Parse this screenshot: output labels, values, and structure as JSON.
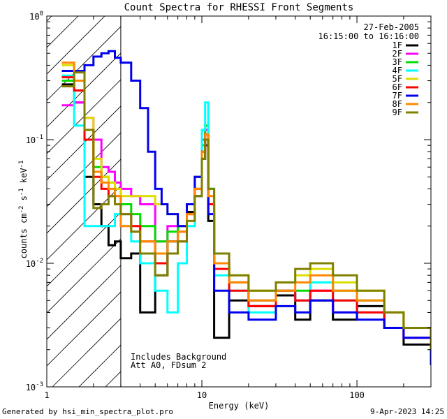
{
  "chart_data": {
    "type": "line",
    "title": "Count Spectra for RHESSI Front Segments",
    "xlabel": "Energy (keV)",
    "ylabel": "counts cm^-2 s^-1 keV^-1",
    "x_scale": "log",
    "y_scale": "log",
    "xlim": [
      1.0,
      300.0
    ],
    "ylim": [
      0.001,
      1.0
    ],
    "x_ticks": [
      {
        "value": 1,
        "label": "1"
      },
      {
        "value": 10,
        "label": "10"
      },
      {
        "value": 100,
        "label": "100"
      }
    ],
    "y_ticks": [
      {
        "value": 0.001,
        "base": "10",
        "exp": "-3"
      },
      {
        "value": 0.01,
        "base": "10",
        "exp": "-2"
      },
      {
        "value": 0.1,
        "base": "10",
        "exp": "-1"
      },
      {
        "value": 1,
        "base": "10",
        "exp": "0"
      }
    ],
    "date": "27-Feb-2005",
    "time_range": "16:15:00 to 16:16:00",
    "hatched_region_max_energy": 3.0,
    "annotations": [
      "Includes Background",
      "Att A0, FDsum 2"
    ],
    "series": [
      {
        "name": "1F",
        "color": "#000000",
        "x": [
          1.25,
          1.5,
          1.75,
          2.0,
          2.25,
          2.5,
          2.75,
          3.0,
          3.5,
          4.0,
          5.0,
          6.0,
          7.0,
          8.0,
          9.0,
          10.0,
          10.5,
          11.0,
          12.0,
          15.0,
          20.0,
          30.0,
          40.0,
          50.0,
          70.0,
          100.0,
          150.0,
          200.0,
          300.0
        ],
        "values": [
          0.28,
          0.2,
          0.05,
          0.03,
          0.02,
          0.014,
          0.015,
          0.011,
          0.012,
          0.004,
          0.008,
          0.015,
          0.02,
          0.026,
          0.035,
          0.07,
          0.09,
          0.022,
          0.0025,
          0.005,
          0.0045,
          0.0055,
          0.0035,
          0.005,
          0.0035,
          0.0045,
          0.003,
          0.0022,
          0.0015
        ]
      },
      {
        "name": "2F",
        "color": "#ff00ff",
        "x": [
          1.25,
          1.5,
          1.75,
          2.0,
          2.25,
          2.5,
          2.75,
          3.0,
          3.5,
          4.0,
          5.0,
          6.0,
          7.0,
          8.0,
          9.0,
          10.0,
          10.5,
          11.0,
          12.0,
          15.0,
          20.0,
          30.0,
          40.0,
          50.0,
          70.0,
          100.0,
          150.0,
          200.0,
          300.0
        ],
        "values": [
          0.19,
          0.2,
          0.15,
          0.1,
          0.06,
          0.055,
          0.045,
          0.04,
          0.035,
          0.03,
          0.015,
          0.02,
          0.018,
          0.03,
          0.05,
          0.1,
          0.12,
          0.03,
          0.012,
          0.007,
          0.005,
          0.006,
          0.005,
          0.006,
          0.004,
          0.004,
          0.003,
          0.0025,
          0.002
        ]
      },
      {
        "name": "3F",
        "color": "#00dd00",
        "x": [
          1.25,
          1.5,
          1.75,
          2.0,
          2.25,
          2.5,
          2.75,
          3.0,
          3.5,
          4.0,
          5.0,
          6.0,
          7.0,
          8.0,
          9.0,
          10.0,
          10.5,
          11.0,
          12.0,
          15.0,
          20.0,
          30.0,
          40.0,
          50.0,
          70.0,
          100.0,
          150.0,
          200.0,
          300.0
        ],
        "values": [
          0.3,
          0.25,
          0.12,
          0.06,
          0.05,
          0.045,
          0.04,
          0.03,
          0.025,
          0.02,
          0.015,
          0.018,
          0.02,
          0.03,
          0.05,
          0.09,
          0.13,
          0.04,
          0.01,
          0.007,
          0.005,
          0.006,
          0.006,
          0.007,
          0.006,
          0.005,
          0.004,
          0.003,
          0.002
        ]
      },
      {
        "name": "4F",
        "color": "#00ffff",
        "x": [
          1.25,
          1.5,
          1.75,
          2.0,
          2.25,
          2.5,
          2.75,
          3.0,
          3.5,
          4.0,
          5.0,
          6.0,
          7.0,
          8.0,
          9.0,
          10.0,
          10.5,
          11.0,
          12.0,
          15.0,
          20.0,
          30.0,
          40.0,
          50.0,
          70.0,
          100.0,
          150.0,
          200.0,
          300.0
        ],
        "values": [
          0.33,
          0.13,
          0.02,
          0.02,
          0.02,
          0.02,
          0.025,
          0.025,
          0.015,
          0.01,
          0.006,
          0.004,
          0.01,
          0.02,
          0.04,
          0.12,
          0.2,
          0.04,
          0.008,
          0.006,
          0.004,
          0.006,
          0.005,
          0.007,
          0.005,
          0.004,
          0.003,
          0.003,
          0.002
        ]
      },
      {
        "name": "5F",
        "color": "#dddd00",
        "x": [
          1.25,
          1.5,
          1.75,
          2.0,
          2.25,
          2.5,
          2.75,
          3.0,
          3.5,
          4.0,
          5.0,
          6.0,
          7.0,
          8.0,
          9.0,
          10.0,
          10.5,
          11.0,
          12.0,
          15.0,
          20.0,
          30.0,
          40.0,
          50.0,
          70.0,
          100.0,
          150.0,
          200.0,
          300.0
        ],
        "values": [
          0.4,
          0.3,
          0.15,
          0.07,
          0.05,
          0.045,
          0.04,
          0.035,
          0.035,
          0.035,
          0.03,
          0.025,
          0.02,
          0.025,
          0.04,
          0.08,
          0.1,
          0.03,
          0.01,
          0.008,
          0.006,
          0.007,
          0.008,
          0.009,
          0.007,
          0.006,
          0.004,
          0.003,
          0.002
        ]
      },
      {
        "name": "6F",
        "color": "#ff0000",
        "x": [
          1.25,
          1.5,
          1.75,
          2.0,
          2.25,
          2.5,
          2.75,
          3.0,
          3.5,
          4.0,
          5.0,
          6.0,
          7.0,
          8.0,
          9.0,
          10.0,
          10.5,
          11.0,
          12.0,
          15.0,
          20.0,
          30.0,
          40.0,
          50.0,
          70.0,
          100.0,
          150.0,
          200.0,
          300.0
        ],
        "values": [
          0.32,
          0.25,
          0.1,
          0.05,
          0.04,
          0.035,
          0.03,
          0.025,
          0.02,
          0.015,
          0.01,
          0.012,
          0.015,
          0.025,
          0.04,
          0.08,
          0.11,
          0.03,
          0.009,
          0.006,
          0.0045,
          0.006,
          0.005,
          0.006,
          0.005,
          0.004,
          0.003,
          0.0025,
          0.002
        ]
      },
      {
        "name": "7F",
        "color": "#0000ee",
        "x": [
          1.25,
          1.5,
          1.75,
          2.0,
          2.25,
          2.5,
          2.75,
          3.0,
          3.5,
          4.0,
          4.5,
          5.0,
          5.5,
          6.0,
          7.0,
          8.0,
          9.0,
          10.0,
          10.5,
          11.0,
          12.0,
          15.0,
          20.0,
          30.0,
          40.0,
          50.0,
          70.0,
          100.0,
          150.0,
          200.0,
          300.0
        ],
        "values": [
          0.36,
          0.36,
          0.4,
          0.47,
          0.5,
          0.52,
          0.46,
          0.42,
          0.3,
          0.18,
          0.08,
          0.04,
          0.03,
          0.025,
          0.02,
          0.03,
          0.05,
          0.08,
          0.1,
          0.025,
          0.006,
          0.004,
          0.0035,
          0.0045,
          0.004,
          0.005,
          0.004,
          0.0035,
          0.003,
          0.0025,
          0.0015
        ]
      },
      {
        "name": "8F",
        "color": "#ff8800",
        "x": [
          1.25,
          1.5,
          1.75,
          2.0,
          2.25,
          2.5,
          2.75,
          3.0,
          3.5,
          4.0,
          5.0,
          6.0,
          7.0,
          8.0,
          9.0,
          10.0,
          10.5,
          11.0,
          12.0,
          15.0,
          20.0,
          30.0,
          40.0,
          50.0,
          70.0,
          100.0,
          150.0,
          200.0,
          300.0
        ],
        "values": [
          0.42,
          0.3,
          0.12,
          0.055,
          0.045,
          0.04,
          0.035,
          0.02,
          0.018,
          0.015,
          0.012,
          0.015,
          0.018,
          0.025,
          0.04,
          0.08,
          0.11,
          0.035,
          0.01,
          0.007,
          0.005,
          0.006,
          0.007,
          0.008,
          0.006,
          0.005,
          0.004,
          0.003,
          0.002
        ]
      },
      {
        "name": "9F",
        "color": "#808000",
        "x": [
          1.25,
          1.5,
          1.75,
          2.0,
          2.25,
          2.5,
          2.75,
          3.0,
          3.5,
          4.0,
          5.0,
          6.0,
          7.0,
          8.0,
          9.0,
          10.0,
          10.5,
          11.0,
          12.0,
          15.0,
          20.0,
          30.0,
          40.0,
          50.0,
          70.0,
          100.0,
          150.0,
          200.0,
          300.0
        ],
        "values": [
          0.27,
          0.35,
          0.12,
          0.028,
          0.03,
          0.035,
          0.03,
          0.025,
          0.018,
          0.012,
          0.008,
          0.012,
          0.015,
          0.022,
          0.035,
          0.07,
          0.1,
          0.04,
          0.012,
          0.008,
          0.006,
          0.007,
          0.009,
          0.01,
          0.008,
          0.006,
          0.004,
          0.003,
          0.002
        ]
      }
    ]
  },
  "footer": {
    "generated_by": "Generated by hsi_min_spectra_plot.pro",
    "timestamp": "9-Apr-2023 14:25"
  }
}
